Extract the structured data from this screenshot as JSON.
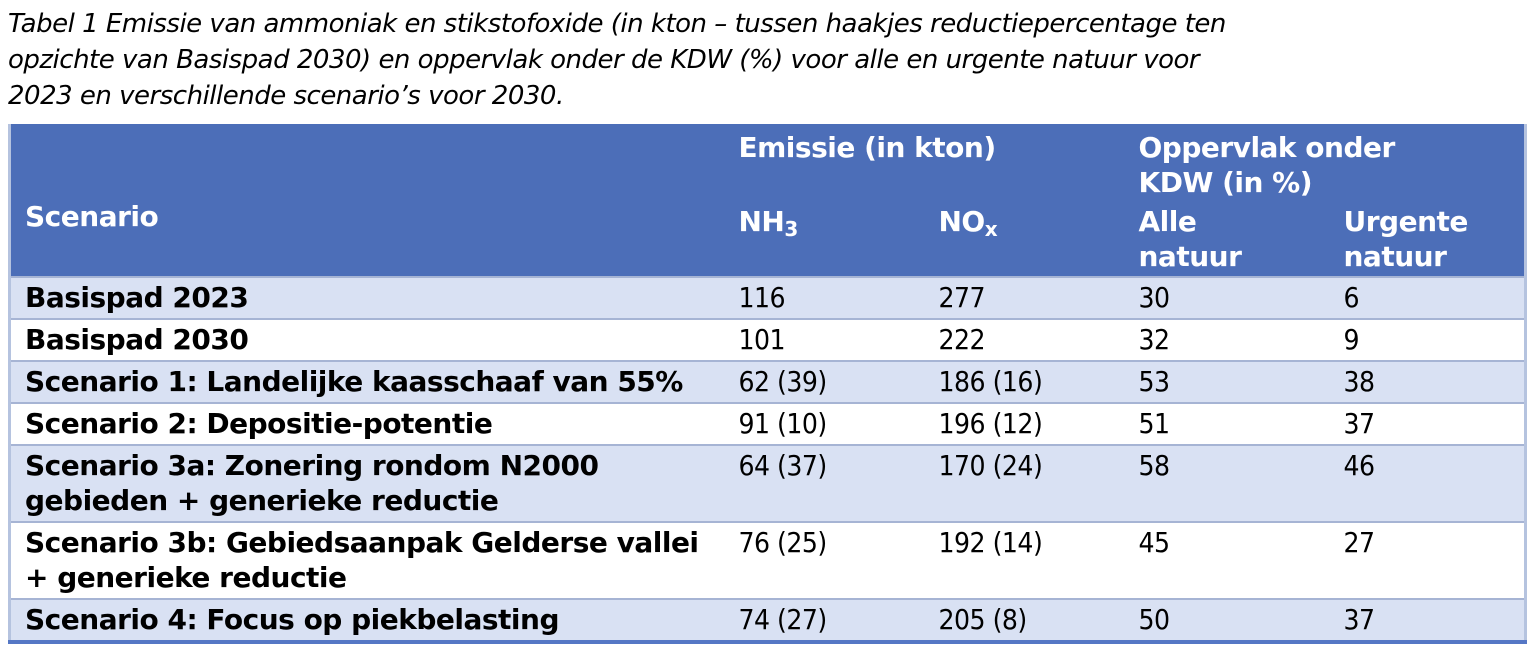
{
  "caption": {
    "lines": [
      "Tabel 1 Emissie van ammoniak en stikstofoxide (in kton – tussen haakjes reductiepercentage ten",
      "opzichte van Basispad 2030) en oppervlak onder de KDW (%) voor alle en urgente natuur voor",
      "2023 en verschillende scenario’s voor 2030."
    ]
  },
  "table": {
    "header": {
      "scenario": "Scenario",
      "emissie_group": "Emissie (in kton)",
      "oppervlak_group": "Oppervlak onder KDW (in %)",
      "nh3": {
        "base": "NH",
        "sub": "3"
      },
      "nox": {
        "base": "NO",
        "sub": "x"
      },
      "alle_natuur": "Alle natuur",
      "urgente_natuur": "Urgente natuur"
    },
    "rows": [
      {
        "scenario": "Basispad 2023",
        "nh3": "116",
        "nox": "277",
        "alle_natuur": "30",
        "urgente_natuur": "6"
      },
      {
        "scenario": "Basispad 2030",
        "nh3": "101",
        "nox": "222",
        "alle_natuur": "32",
        "urgente_natuur": "9"
      },
      {
        "scenario": "Scenario 1: Landelijke kaasschaaf van 55%",
        "nh3": "62 (39)",
        "nox": "186 (16)",
        "alle_natuur": "53",
        "urgente_natuur": "38"
      },
      {
        "scenario": "Scenario 2: Depositie-potentie",
        "nh3": "91 (10)",
        "nox": "196 (12)",
        "alle_natuur": "51",
        "urgente_natuur": "37"
      },
      {
        "scenario": "Scenario 3a: Zonering rondom N2000 gebieden + generieke reductie",
        "nh3": "64 (37)",
        "nox": "170 (24)",
        "alle_natuur": "58",
        "urgente_natuur": "46"
      },
      {
        "scenario": "Scenario 3b: Gebiedsaanpak Gelderse vallei + generieke reductie",
        "nh3": "76 (25)",
        "nox": "192 (14)",
        "alle_natuur": "45",
        "urgente_natuur": "27"
      },
      {
        "scenario": "Scenario 4: Focus op piekbelasting",
        "nh3": "74 (27)",
        "nox": "205 (8)",
        "alle_natuur": "50",
        "urgente_natuur": "37"
      }
    ],
    "colors": {
      "header_bg": "#4c6eb8",
      "band_bg": "#d9e1f3",
      "white_bg": "#ffffff",
      "row_separator": "#a6b4d4",
      "side_border": "#b5c3df",
      "bottom_border": "#5577c5",
      "header_text": "#ffffff",
      "body_text": "#000000"
    }
  }
}
